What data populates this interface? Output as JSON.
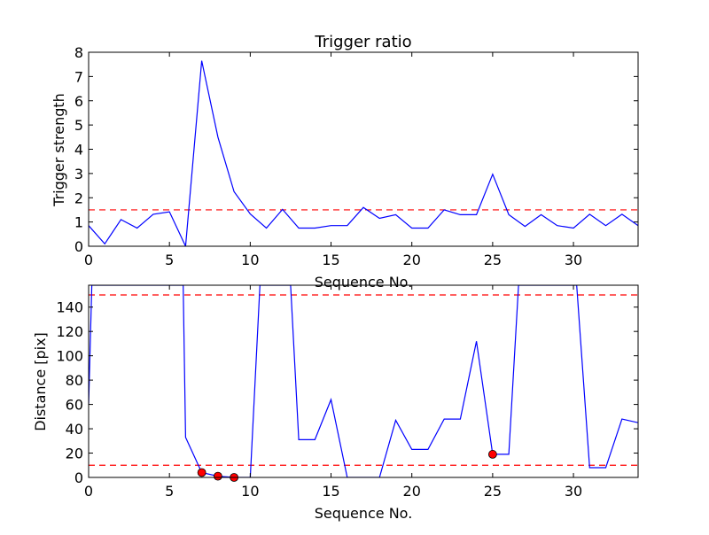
{
  "chart_data": [
    {
      "type": "line",
      "title": "Trigger ratio",
      "xlabel": "Sequence No.",
      "ylabel": "Trigger strength",
      "xlim": [
        0,
        34
      ],
      "ylim": [
        0,
        8
      ],
      "xticks": [
        0,
        5,
        10,
        15,
        20,
        25,
        30
      ],
      "yticks": [
        0,
        1,
        2,
        3,
        4,
        5,
        6,
        7,
        8
      ],
      "threshold": 1.5,
      "series_color": "#0000ff",
      "threshold_color": "#ff0000",
      "series": [
        {
          "x": [
            0,
            1,
            2,
            3,
            4,
            5,
            6,
            7,
            8,
            9,
            10,
            11,
            12,
            13,
            14,
            15,
            16,
            17,
            18,
            19,
            20,
            21,
            22,
            23,
            24,
            25,
            26,
            27,
            28,
            29,
            30,
            31,
            32,
            33,
            34
          ],
          "values": [
            0.85,
            0.1,
            1.1,
            0.75,
            1.32,
            1.42,
            0.0,
            7.65,
            4.5,
            2.25,
            1.33,
            0.75,
            1.52,
            0.75,
            0.75,
            0.85,
            0.85,
            1.6,
            1.15,
            1.3,
            0.75,
            0.75,
            1.5,
            1.3,
            1.3,
            2.97,
            1.3,
            0.82,
            1.3,
            0.85,
            0.75,
            1.32,
            0.85,
            1.32,
            0.85
          ]
        }
      ]
    },
    {
      "type": "line",
      "title": "",
      "xlabel": "Sequence No.",
      "ylabel": "Distance [pix]",
      "xlim": [
        0,
        34
      ],
      "ylim": [
        0,
        158
      ],
      "xticks": [
        0,
        5,
        10,
        15,
        20,
        25,
        30
      ],
      "yticks": [
        0,
        20,
        40,
        60,
        80,
        100,
        120,
        140
      ],
      "thresholds": [
        10,
        150
      ],
      "series_color": "#0000ff",
      "threshold_color": "#ff0000",
      "marker_color": "#ff0000",
      "series": [
        {
          "x": [
            0,
            0.2,
            1,
            2,
            3,
            4,
            5,
            5.85,
            6,
            7,
            8,
            9,
            10,
            10.6,
            11,
            12,
            12.5,
            13,
            14,
            15,
            16,
            17,
            18,
            19,
            20,
            21,
            22,
            23,
            24,
            25,
            26,
            26.6,
            27,
            28,
            29,
            30,
            30.2,
            31,
            32,
            33,
            34
          ],
          "values": [
            60,
            158,
            158,
            158,
            158,
            158,
            158,
            158,
            33,
            4,
            1,
            0,
            0,
            158,
            158,
            158,
            158,
            31,
            31,
            64,
            0,
            0,
            0,
            47,
            23,
            23,
            48,
            48,
            112,
            19,
            19,
            158,
            158,
            158,
            158,
            158,
            158,
            8,
            8,
            48,
            45
          ]
        }
      ],
      "markers": [
        {
          "x": 7,
          "y": 4
        },
        {
          "x": 8,
          "y": 1
        },
        {
          "x": 9,
          "y": 0
        },
        {
          "x": 25,
          "y": 19
        }
      ]
    }
  ]
}
